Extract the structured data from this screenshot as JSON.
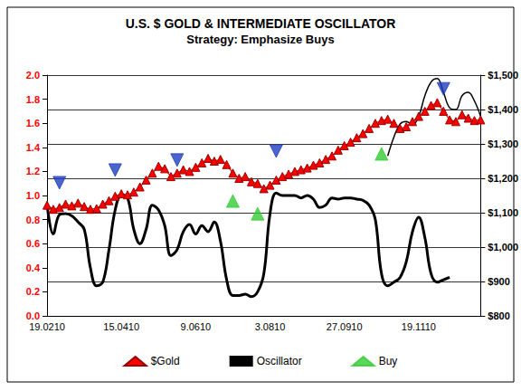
{
  "chart_data": {
    "type": "line",
    "title": "U.S. $ GOLD & INTERMEDIATE OSCILLATOR",
    "subtitle": "Strategy: Emphasize Buys",
    "categories": [
      "19.0210",
      null,
      null,
      null,
      null,
      null,
      null,
      null,
      null,
      null,
      null,
      null,
      "15.0410",
      null,
      null,
      null,
      null,
      null,
      null,
      null,
      null,
      null,
      null,
      null,
      "9.0610",
      null,
      null,
      null,
      null,
      null,
      null,
      null,
      null,
      null,
      null,
      null,
      "3.0810",
      null,
      null,
      null,
      null,
      null,
      null,
      null,
      null,
      null,
      null,
      null,
      "27.0910",
      null,
      null,
      null,
      null,
      null,
      null,
      null,
      null,
      null,
      null,
      null,
      "19.1110",
      null,
      null,
      null,
      null,
      null,
      null,
      null,
      null,
      null,
      null
    ],
    "ylim": [
      0,
      2
    ],
    "yticks": [
      {
        "value": 0,
        "label": "0.0"
      },
      {
        "value": 0.2,
        "label": "0.2"
      },
      {
        "value": 0.4,
        "label": "0.4"
      },
      {
        "value": 0.6,
        "label": "0.6"
      },
      {
        "value": 0.8,
        "label": "0.8"
      },
      {
        "value": 1,
        "label": "1.0"
      },
      {
        "value": 1.2,
        "label": "1.2"
      },
      {
        "value": 1.4,
        "label": "1.4"
      },
      {
        "value": 1.6,
        "label": "1.6"
      },
      {
        "value": 1.8,
        "label": "1.8"
      },
      {
        "value": 2,
        "label": "2.0"
      }
    ],
    "y2lim": [
      800,
      1500
    ],
    "y2ticks": [
      {
        "value": 800,
        "label": "$800"
      },
      {
        "value": 900,
        "label": "$900"
      },
      {
        "value": 1000,
        "label": "$1,000"
      },
      {
        "value": 1100,
        "label": "$1,100"
      },
      {
        "value": 1200,
        "label": "$1,200"
      },
      {
        "value": 1300,
        "label": "$1,300"
      },
      {
        "value": 1400,
        "label": "$1,400"
      },
      {
        "value": 1500,
        "label": "$1,500"
      }
    ],
    "grid": true,
    "legend": "bottom",
    "series": [
      {
        "name": "$Gold",
        "type": "line",
        "axis": "y2",
        "color": "#ff0000",
        "marker": "triangle",
        "values": [
          1122,
          1110,
          1115,
          1125,
          1120,
          1128,
          1118,
          1110,
          1112,
          1125,
          1135,
          1148,
          1155,
          1152,
          1160,
          1175,
          1195,
          1215,
          1235,
          1228,
          1205,
          1215,
          1225,
          1220,
          1232,
          1245,
          1258,
          1250,
          1255,
          1240,
          1215,
          1200,
          1205,
          1190,
          1185,
          1170,
          1180,
          1195,
          1205,
          1212,
          1220,
          1225,
          1230,
          1238,
          1245,
          1255,
          1265,
          1282,
          1295,
          1305,
          1318,
          1330,
          1345,
          1360,
          1368,
          1372,
          1360,
          1345,
          1350,
          1365,
          1380,
          1395,
          1412,
          1420,
          1395,
          1370,
          1365,
          1385,
          1375,
          1368,
          1370
        ]
      },
      {
        "name": "Oscillator",
        "type": "line",
        "axis": "y",
        "color": "#000000",
        "marker": "none",
        "values": [
          0.93,
          0.68,
          0.84,
          0.85,
          0.83,
          0.78,
          0.72,
          0.4,
          0.25,
          0.28,
          0.55,
          0.88,
          1.0,
          0.98,
          0.72,
          0.6,
          0.72,
          0.92,
          0.88,
          0.75,
          0.5,
          0.55,
          0.7,
          0.76,
          0.68,
          0.75,
          0.7,
          0.78,
          0.62,
          0.3,
          0.17,
          0.17,
          0.18,
          0.16,
          0.2,
          0.35,
          0.85,
          1.02,
          1.0,
          1.0,
          1.0,
          0.98,
          1.0,
          0.97,
          0.9,
          0.92,
          0.98,
          0.97,
          0.98,
          0.98,
          0.97,
          0.96,
          0.92,
          0.8,
          0.35,
          0.25,
          0.28,
          0.32,
          0.45,
          0.7,
          0.82,
          0.65,
          0.35,
          0.28,
          0.3,
          0.32,
          null,
          null,
          null,
          null,
          null
        ]
      },
      {
        "name": "Buy",
        "type": "scatter",
        "axis": "y2",
        "color": "#33cc33",
        "marker": "triangle",
        "values": [
          null,
          null,
          null,
          null,
          null,
          null,
          null,
          null,
          null,
          null,
          null,
          null,
          null,
          null,
          null,
          null,
          null,
          null,
          null,
          null,
          null,
          null,
          null,
          null,
          null,
          null,
          null,
          null,
          null,
          null,
          1134,
          null,
          null,
          null,
          1097,
          null,
          null,
          null,
          null,
          null,
          null,
          null,
          null,
          null,
          null,
          null,
          null,
          null,
          null,
          null,
          null,
          null,
          null,
          null,
          1271,
          null,
          null,
          null,
          null,
          null,
          null,
          null,
          null,
          null,
          null,
          null,
          null,
          null,
          null,
          null,
          null
        ]
      },
      {
        "type": "scatter",
        "axis": "y2",
        "color": "#1f3fbf",
        "marker": "triangle-down",
        "values": [
          null,
          null,
          1187,
          null,
          null,
          null,
          null,
          null,
          null,
          null,
          null,
          1224,
          null,
          null,
          null,
          null,
          null,
          null,
          null,
          null,
          null,
          1253,
          null,
          null,
          null,
          null,
          null,
          null,
          null,
          null,
          null,
          null,
          null,
          null,
          null,
          null,
          null,
          1279,
          null,
          null,
          null,
          null,
          null,
          null,
          null,
          null,
          null,
          null,
          null,
          null,
          null,
          null,
          null,
          null,
          null,
          null,
          null,
          null,
          null,
          null,
          null,
          null,
          null,
          null,
          1460,
          null,
          null,
          null,
          null,
          null,
          null
        ]
      },
      {
        "type": "line",
        "axis": "y2",
        "color": "#000000",
        "marker": "none",
        "values": [
          null,
          null,
          null,
          null,
          null,
          null,
          null,
          null,
          null,
          null,
          null,
          null,
          null,
          null,
          null,
          null,
          null,
          null,
          null,
          null,
          null,
          null,
          null,
          null,
          null,
          null,
          null,
          null,
          null,
          null,
          null,
          null,
          null,
          null,
          null,
          null,
          null,
          null,
          null,
          null,
          null,
          null,
          null,
          null,
          null,
          null,
          null,
          null,
          null,
          null,
          null,
          null,
          null,
          null,
          null,
          1265,
          1320,
          1358,
          1365,
          1355,
          1380,
          1440,
          1480,
          1490,
          1450,
          1405,
          1400,
          1440,
          1450,
          1425,
          1380
        ]
      }
    ]
  }
}
